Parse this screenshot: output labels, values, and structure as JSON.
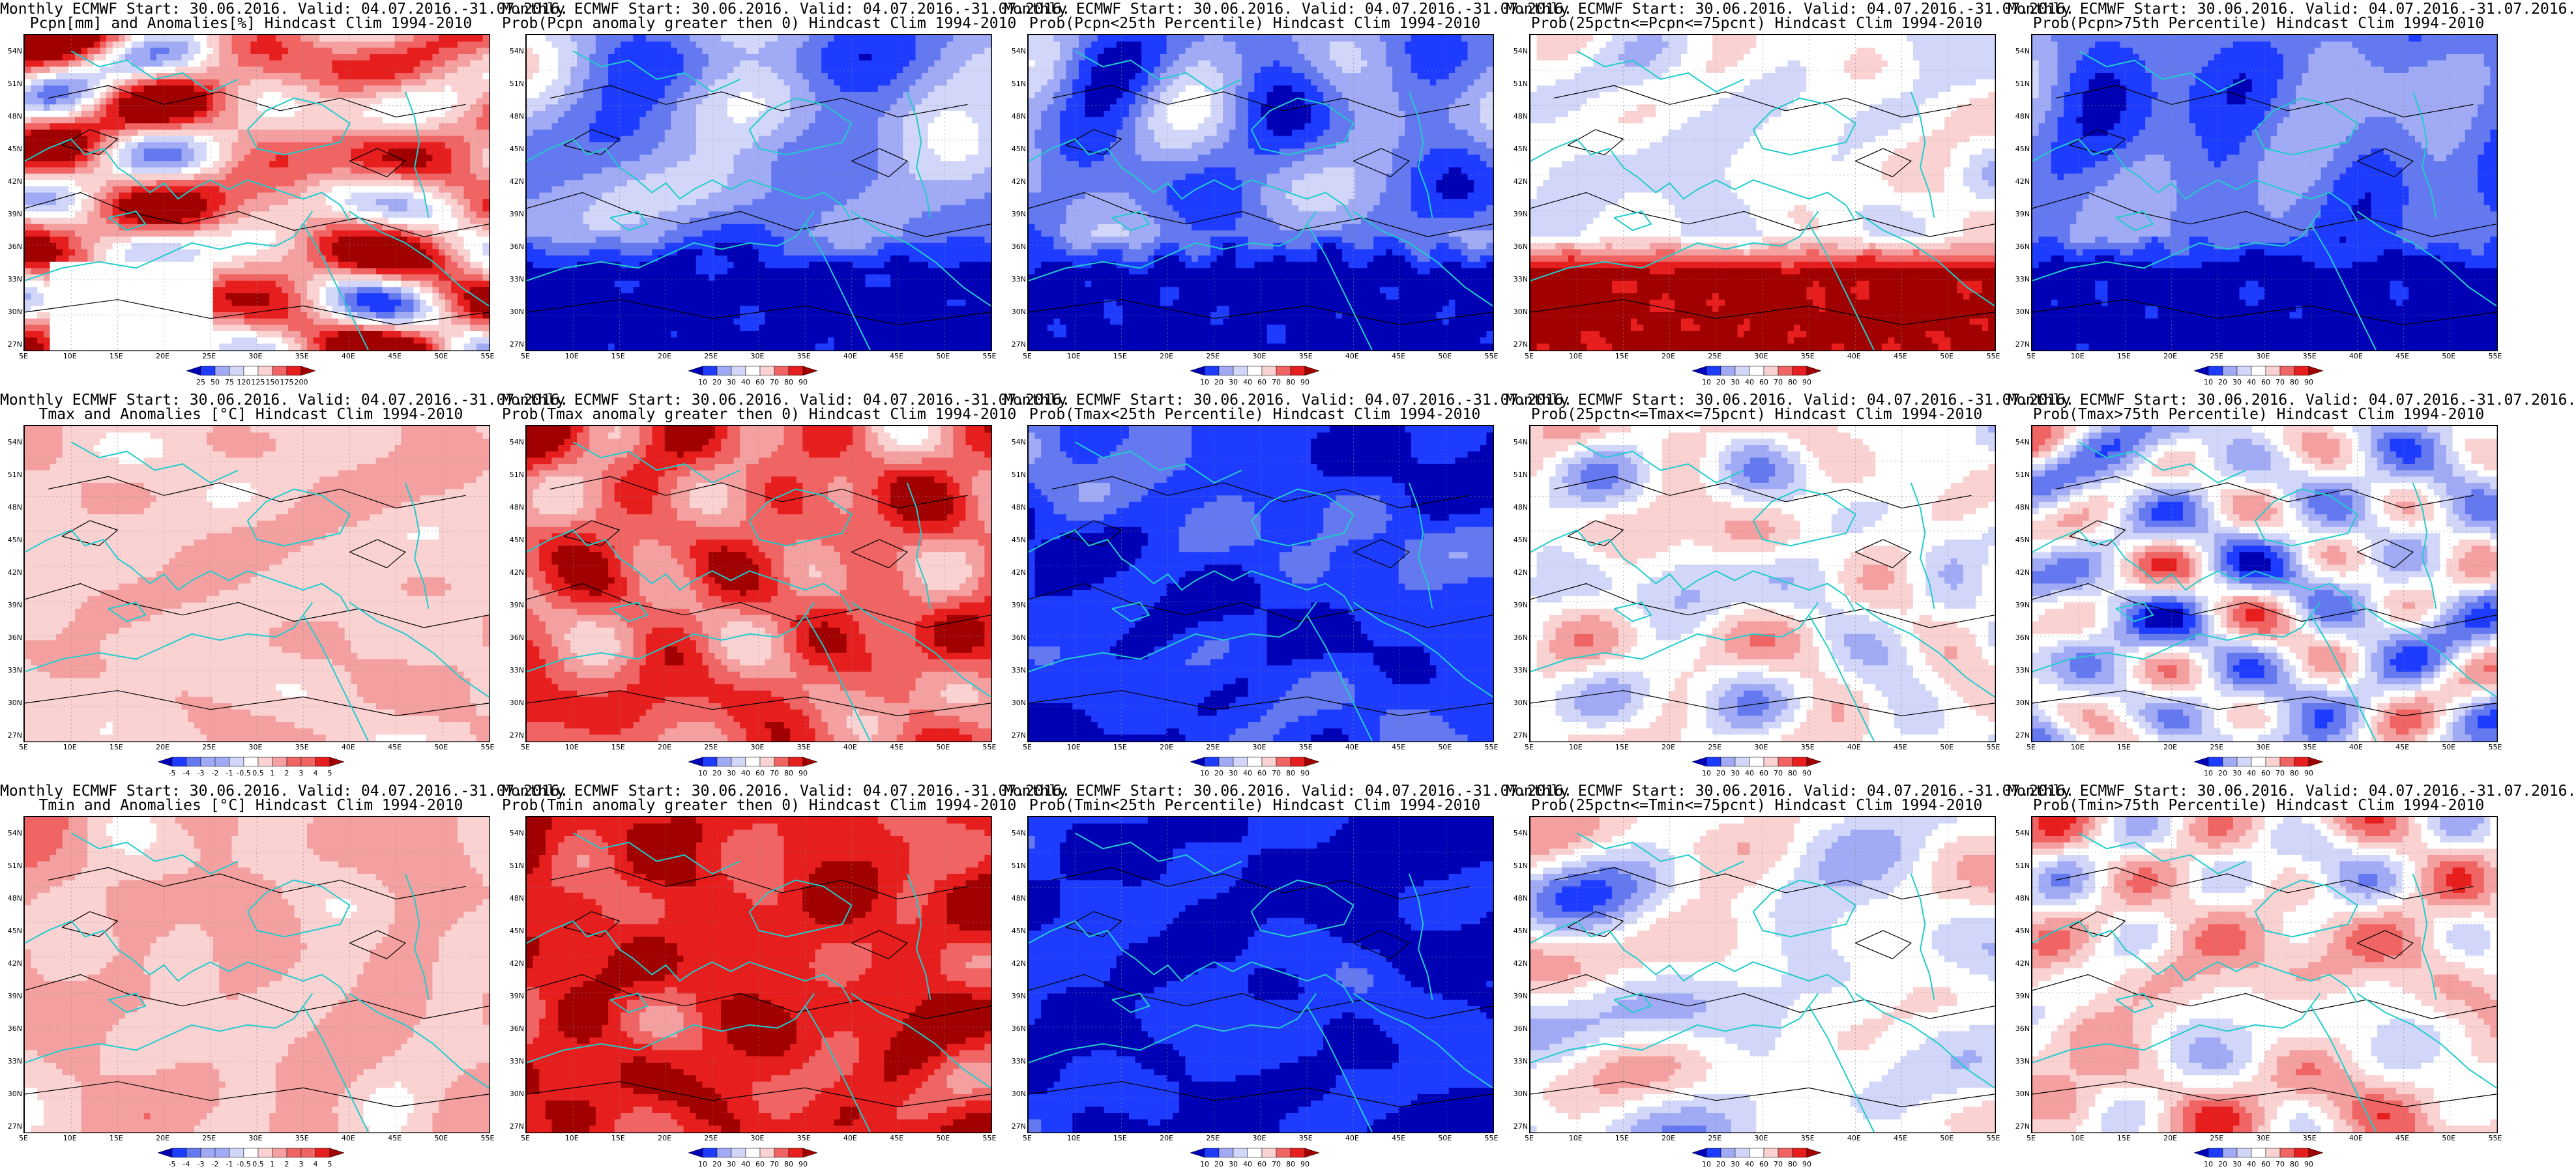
{
  "lat_ticks": [
    "54N",
    "51N",
    "48N",
    "45N",
    "42N",
    "39N",
    "36N",
    "33N",
    "30N",
    "27N"
  ],
  "lon_ticks": [
    "5E",
    "10E",
    "15E",
    "20E",
    "25E",
    "30E",
    "35E",
    "40E",
    "45E",
    "50E",
    "55E"
  ],
  "colors": {
    "blue": [
      "#0000b4",
      "#1e3cff",
      "#6478f0",
      "#a0aaf5",
      "#d2d7fa"
    ],
    "red": [
      "#fad2d2",
      "#f5a0a0",
      "#f06464",
      "#e61e1e",
      "#a00000"
    ],
    "coast": "#22cccc",
    "contour": "#000000"
  },
  "panels": [
    {
      "title1": "Monthly ECMWF Start: 30.06.2016. Valid: 04.07.2016.-31.07.2016.",
      "title2": "Pcpn[mm] and Anomalies[%] Hindcast Clim 1994-2010",
      "cbar": [
        "25",
        "50",
        "75",
        "120",
        "125",
        "150",
        "175",
        "200"
      ],
      "bias": 0.4,
      "amp": 0.9,
      "seed": 3,
      "white_south": true
    },
    {
      "title1": "Monthly ECMWF Start: 30.06.2016. Valid: 04.07.2016.-31.07.2016.",
      "title2": "Prob(Pcpn anomaly greater then 0) Hindcast Clim 1994-2010",
      "cbar": [
        "10",
        "20",
        "30",
        "40",
        "60",
        "70",
        "80",
        "90"
      ],
      "bias": -0.45,
      "amp": 0.5,
      "seed": 7,
      "south_level": -1.0
    },
    {
      "title1": "Monthly ECMWF Start: 30.06.2016. Valid: 04.07.2016.-31.07.2016.",
      "title2": "Prob(Pcpn<25th Percentile) Hindcast Clim 1994-2010",
      "cbar": [
        "10",
        "20",
        "30",
        "40",
        "60",
        "70",
        "80",
        "90"
      ],
      "bias": -0.55,
      "amp": 0.45,
      "seed": 11,
      "south_level": -1.0
    },
    {
      "title1": "Monthly ECMWF Start: 30.06.2016. Valid: 04.07.2016.-31.07.2016.",
      "title2": "Prob(25pctn<=Pcpn<=75pcnt) Hindcast Clim 1994-2010",
      "cbar": [
        "10",
        "20",
        "30",
        "40",
        "60",
        "70",
        "80",
        "90"
      ],
      "bias": -0.05,
      "amp": 0.4,
      "seed": 13,
      "south_level": 0.95
    },
    {
      "title1": "Monthly ECMWF Start: 30.06.2016. Valid: 04.07.2016.-31.07.2016.",
      "title2": "Prob(Pcpn>75th Percentile) Hindcast Clim 1994-2010",
      "cbar": [
        "10",
        "20",
        "30",
        "40",
        "60",
        "70",
        "80",
        "90"
      ],
      "bias": -0.6,
      "amp": 0.4,
      "seed": 17,
      "south_level": -1.0
    },
    {
      "title1": "Monthly ECMWF Start: 30.06.2016. Valid: 04.07.2016.-31.07.2016.",
      "title2": "Tmax and Anomalies [°C] Hindcast Clim 1994-2010",
      "cbar": [
        "-5",
        "-4",
        "-3",
        "-2",
        "-1",
        "-0.5",
        "0.5",
        "1",
        "2",
        "3",
        "4",
        "5"
      ],
      "bias": 0.25,
      "amp": 0.25,
      "seed": 19
    },
    {
      "title1": "Monthly ECMWF Start: 30.06.2016. Valid: 04.07.2016.-31.07.2016.",
      "title2": "Prob(Tmax anomaly greater then 0) Hindcast Clim 1994-2010",
      "cbar": [
        "10",
        "20",
        "30",
        "40",
        "60",
        "70",
        "80",
        "90"
      ],
      "bias": 0.6,
      "amp": 0.45,
      "seed": 23
    },
    {
      "title1": "Monthly ECMWF Start: 30.06.2016. Valid: 04.07.2016.-31.07.2016.",
      "title2": "Prob(Tmax<25th Percentile) Hindcast Clim 1994-2010",
      "cbar": [
        "10",
        "20",
        "30",
        "40",
        "60",
        "70",
        "80",
        "90"
      ],
      "bias": -0.8,
      "amp": 0.35,
      "seed": 29
    },
    {
      "title1": "Monthly ECMWF Start: 30.06.2016. Valid: 04.07.2016.-31.07.2016.",
      "title2": "Prob(25pctn<=Tmax<=75pcnt) Hindcast Clim 1994-2010",
      "cbar": [
        "10",
        "20",
        "30",
        "40",
        "60",
        "70",
        "80",
        "90"
      ],
      "bias": 0.0,
      "amp": 0.55,
      "seed": 31
    },
    {
      "title1": "Monthly ECMWF Start: 30.06.2016. Valid: 04.07.2016.-31.07.2016.",
      "title2": "Prob(Tmax>75th Percentile) Hindcast Clim 1994-2010",
      "cbar": [
        "10",
        "20",
        "30",
        "40",
        "60",
        "70",
        "80",
        "90"
      ],
      "bias": -0.15,
      "amp": 0.65,
      "seed": 37
    },
    {
      "title1": "Monthly ECMWF Start: 30.06.2016. Valid: 04.07.2016.-31.07.2016.",
      "title2": "Tmin and Anomalies [°C] Hindcast Clim 1994-2010",
      "cbar": [
        "-5",
        "-4",
        "-3",
        "-2",
        "-1",
        "-0.5",
        "0.5",
        "1",
        "2",
        "3",
        "4",
        "5"
      ],
      "bias": 0.3,
      "amp": 0.25,
      "seed": 41
    },
    {
      "title1": "Monthly ECMWF Start: 30.06.2016. Valid: 04.07.2016.-31.07.2016.",
      "title2": "Prob(Tmin anomaly greater then 0) Hindcast Clim 1994-2010",
      "cbar": [
        "10",
        "20",
        "30",
        "40",
        "60",
        "70",
        "80",
        "90"
      ],
      "bias": 0.8,
      "amp": 0.35,
      "seed": 43
    },
    {
      "title1": "Monthly ECMWF Start: 30.06.2016. Valid: 04.07.2016.-31.07.2016.",
      "title2": "Prob(Tmin<25th Percentile) Hindcast Clim 1994-2010",
      "cbar": [
        "10",
        "20",
        "30",
        "40",
        "60",
        "70",
        "80",
        "90"
      ],
      "bias": -0.9,
      "amp": 0.25,
      "seed": 47
    },
    {
      "title1": "Monthly ECMWF Start: 30.06.2016. Valid: 04.07.2016.-31.07.2016.",
      "title2": "Prob(25pctn<=Tmin<=75pcnt) Hindcast Clim 1994-2010",
      "cbar": [
        "10",
        "20",
        "30",
        "40",
        "60",
        "70",
        "80",
        "90"
      ],
      "bias": -0.05,
      "amp": 0.6,
      "seed": 53
    },
    {
      "title1": "Monthly ECMWF Start: 30.06.2016. Valid: 04.07.2016.-31.07.2016.",
      "title2": "Prob(Tmin>75th Percentile) Hindcast Clim 1994-2010",
      "cbar": [
        "10",
        "20",
        "30",
        "40",
        "60",
        "70",
        "80",
        "90"
      ],
      "bias": 0.15,
      "amp": 0.65,
      "seed": 59
    }
  ]
}
